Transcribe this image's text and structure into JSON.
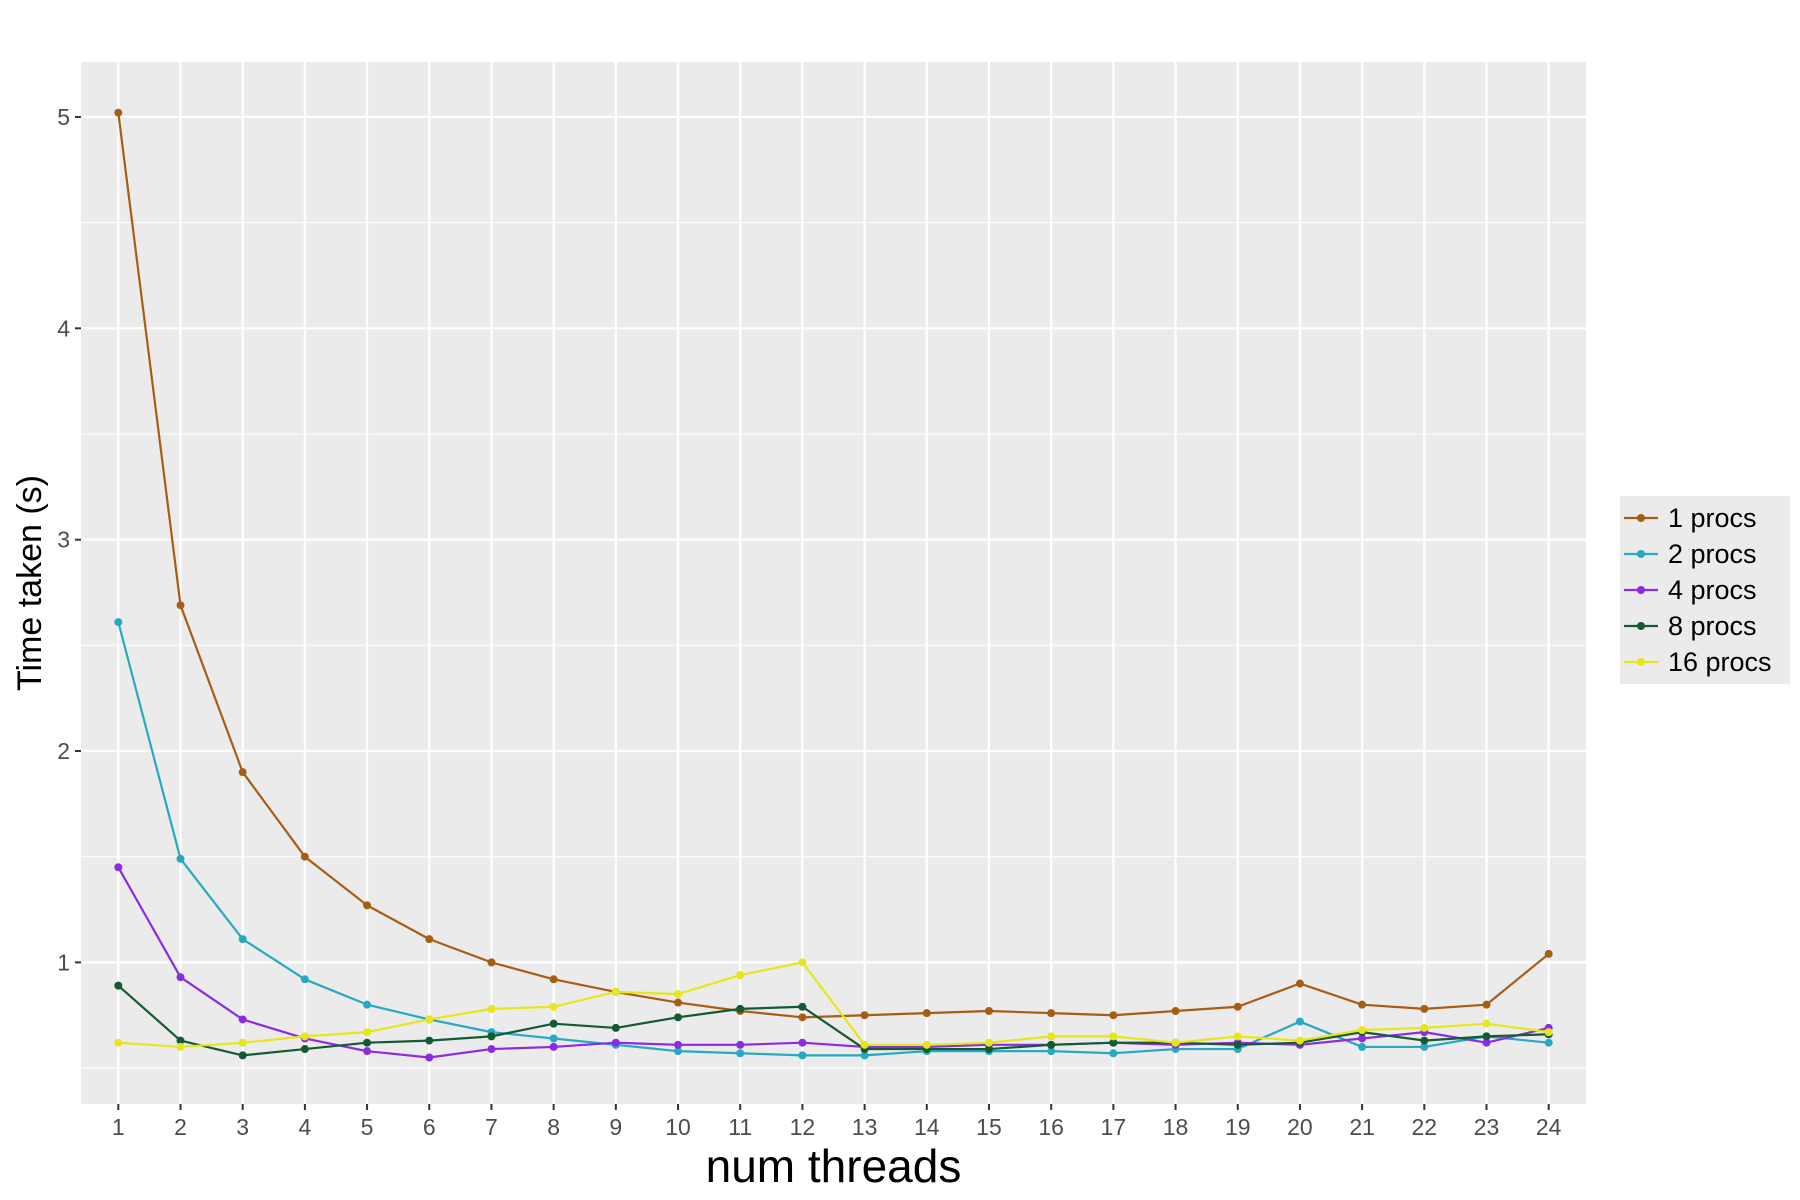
{
  "chart_data": {
    "type": "line",
    "xlabel": "num threads",
    "ylabel": "Time taken (s)",
    "x": [
      1,
      2,
      3,
      4,
      5,
      6,
      7,
      8,
      9,
      10,
      11,
      12,
      13,
      14,
      15,
      16,
      17,
      18,
      19,
      20,
      21,
      22,
      23,
      24
    ],
    "xlim": [
      0.4,
      24.6
    ],
    "ylim": [
      0.33,
      5.26
    ],
    "yticks": [
      1,
      2,
      3,
      4,
      5
    ],
    "grid": true,
    "legend_position": "right",
    "colors": {
      "panel_background": "#ebebeb",
      "grid": "#ffffff"
    },
    "series": [
      {
        "name": "1 procs",
        "color": "#a65d14",
        "values": [
          5.02,
          2.69,
          1.9,
          1.5,
          1.27,
          1.11,
          1.0,
          0.92,
          0.86,
          0.81,
          0.77,
          0.74,
          0.75,
          0.76,
          0.77,
          0.76,
          0.75,
          0.77,
          0.79,
          0.9,
          0.8,
          0.78,
          0.8,
          1.04
        ]
      },
      {
        "name": "2 procs",
        "color": "#26a9c2",
        "values": [
          2.61,
          1.49,
          1.11,
          0.92,
          0.8,
          0.73,
          0.67,
          0.64,
          0.61,
          0.58,
          0.57,
          0.56,
          0.56,
          0.58,
          0.58,
          0.58,
          0.57,
          0.59,
          0.59,
          0.72,
          0.6,
          0.6,
          0.65,
          0.62
        ]
      },
      {
        "name": "4 procs",
        "color": "#8b2be2",
        "values": [
          1.45,
          0.93,
          0.73,
          0.64,
          0.58,
          0.55,
          0.59,
          0.6,
          0.62,
          0.61,
          0.61,
          0.62,
          0.6,
          0.6,
          0.61,
          0.61,
          0.62,
          0.61,
          0.62,
          0.61,
          0.64,
          0.67,
          0.62,
          0.69
        ]
      },
      {
        "name": "8 procs",
        "color": "#145a32",
        "values": [
          0.89,
          0.63,
          0.56,
          0.59,
          0.62,
          0.63,
          0.65,
          0.71,
          0.69,
          0.74,
          0.78,
          0.79,
          0.59,
          0.59,
          0.59,
          0.61,
          0.62,
          0.62,
          0.61,
          0.62,
          0.67,
          0.63,
          0.65,
          0.66
        ]
      },
      {
        "name": "16 procs",
        "color": "#e6e619",
        "values": [
          0.62,
          0.6,
          0.62,
          0.65,
          0.67,
          0.73,
          0.78,
          0.79,
          0.86,
          0.85,
          0.94,
          1.0,
          0.61,
          0.61,
          0.62,
          0.65,
          0.65,
          0.62,
          0.65,
          0.63,
          0.68,
          0.69,
          0.71,
          0.67
        ]
      }
    ]
  }
}
